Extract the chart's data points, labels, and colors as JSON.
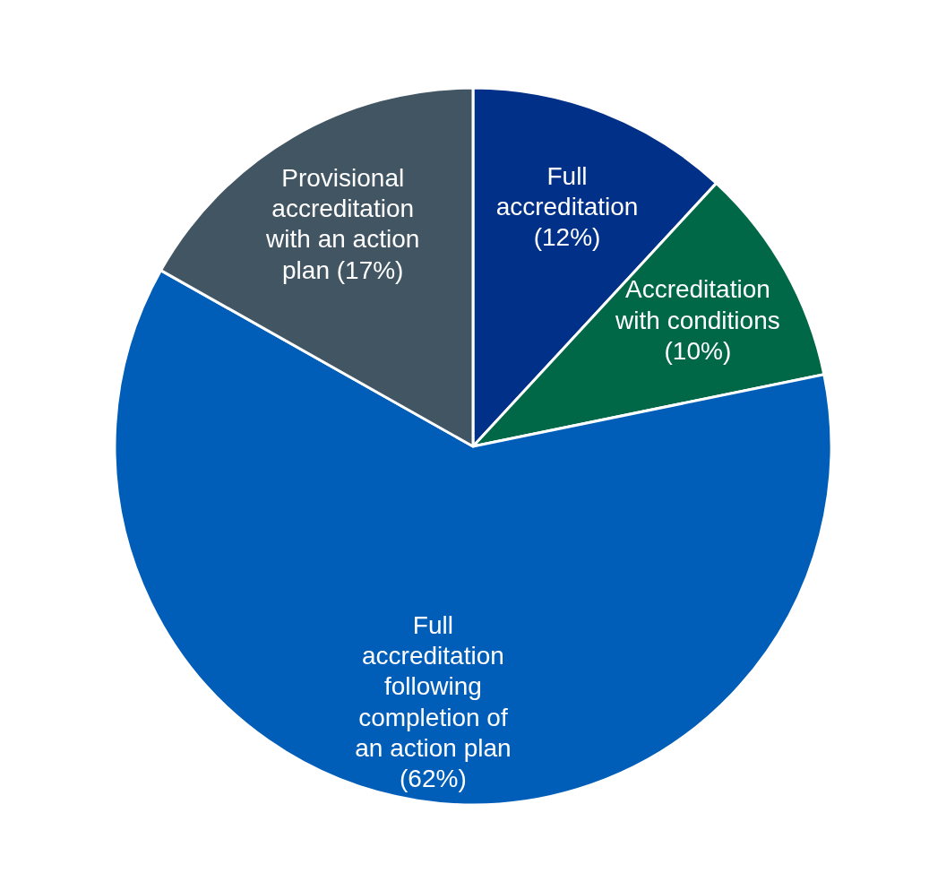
{
  "chart_data": {
    "type": "pie",
    "categories": [
      "Full accreditation",
      "Accreditation with conditions",
      "Full accreditation following completion of an action plan",
      "Provisional accreditation with an action plan"
    ],
    "values": [
      12,
      10,
      62,
      17
    ],
    "colors": [
      "#003087",
      "#006747",
      "#005eb8",
      "#425563"
    ],
    "value_labels": [
      "(12%)",
      "(10%)",
      "(62%)",
      "(17%)"
    ]
  }
}
